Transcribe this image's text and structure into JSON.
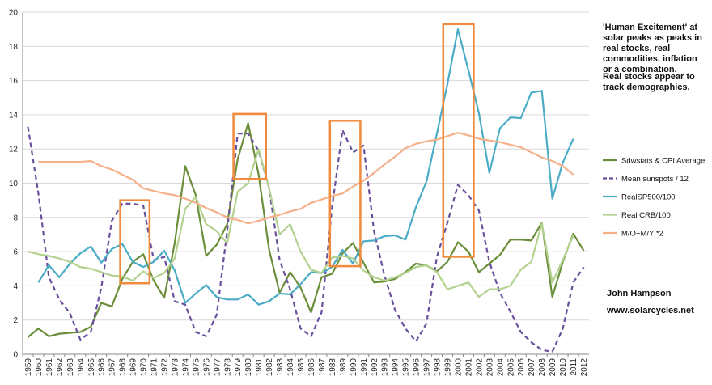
{
  "chart_data": {
    "type": "line",
    "title": "",
    "xlabel": "",
    "ylabel": "",
    "ylim": [
      0,
      20
    ],
    "yticks": [
      0,
      2,
      4,
      6,
      8,
      10,
      12,
      14,
      16,
      18,
      20
    ],
    "x": [
      "1959",
      "1960",
      "1961",
      "1962",
      "1963",
      "1964",
      "1965",
      "1966",
      "1967",
      "1968",
      "1969",
      "1970",
      "1971",
      "1972",
      "1973",
      "1974",
      "1975",
      "1976",
      "1977",
      "1978",
      "1979",
      "1980",
      "1981",
      "1982",
      "1983",
      "1984",
      "1985",
      "1986",
      "1987",
      "1988",
      "1989",
      "1990",
      "1991",
      "1992",
      "1993",
      "1994",
      "1995",
      "1996",
      "1997",
      "1998",
      "1999",
      "2000",
      "2001",
      "2002",
      "2003",
      "2004",
      "2005",
      "2006",
      "2007",
      "2008",
      "2009",
      "2010",
      "2011",
      "2012"
    ],
    "grid": true,
    "legend_position": "right",
    "series": [
      {
        "name": "Sdwstats & CPI Average",
        "color": "#6b8e3a",
        "dash": false,
        "values": [
          1.0,
          1.5,
          1.05,
          1.2,
          1.25,
          1.3,
          1.6,
          3.0,
          2.8,
          4.4,
          5.4,
          5.85,
          4.3,
          3.3,
          6.5,
          11.0,
          9.3,
          5.75,
          6.4,
          7.6,
          11.4,
          13.5,
          10.5,
          6.1,
          3.6,
          4.8,
          3.9,
          2.45,
          4.5,
          4.7,
          5.9,
          6.5,
          5.35,
          4.2,
          4.25,
          4.4,
          4.8,
          5.3,
          5.2,
          4.85,
          5.4,
          6.55,
          6.0,
          4.8,
          5.3,
          5.8,
          6.7,
          6.7,
          6.65,
          7.7,
          3.35,
          5.4,
          7.05,
          6.05
        ]
      },
      {
        "name": "Mean sunspots  / 12",
        "color": "#6a4f9c",
        "dash": true,
        "values": [
          13.3,
          9.4,
          4.5,
          3.2,
          2.4,
          0.85,
          1.3,
          3.9,
          7.8,
          8.8,
          8.8,
          8.7,
          5.5,
          5.7,
          3.1,
          2.9,
          1.3,
          1.05,
          2.3,
          7.2,
          12.9,
          12.9,
          11.9,
          9.7,
          5.5,
          3.8,
          1.5,
          1.05,
          2.45,
          8.6,
          13.1,
          11.8,
          12.2,
          7.2,
          4.6,
          2.6,
          1.5,
          0.75,
          1.8,
          5.7,
          7.7,
          9.9,
          9.3,
          8.4,
          5.4,
          3.6,
          2.5,
          1.3,
          0.7,
          0.25,
          0.15,
          1.5,
          4.2,
          5.1
        ]
      },
      {
        "name": "RealSP500/100",
        "color": "#4bacc6",
        "dash": false,
        "values": [
          null,
          4.2,
          5.2,
          4.5,
          5.3,
          5.9,
          6.3,
          5.35,
          6.15,
          6.45,
          5.4,
          5.1,
          5.4,
          6.05,
          4.9,
          3.0,
          3.55,
          4.05,
          3.35,
          3.2,
          3.2,
          3.5,
          2.9,
          3.1,
          3.55,
          3.5,
          4.1,
          4.8,
          4.75,
          5.1,
          6.1,
          5.3,
          6.6,
          6.65,
          6.9,
          6.95,
          6.7,
          8.6,
          10.1,
          12.9,
          15.8,
          19.0,
          16.6,
          14.1,
          10.6,
          13.2,
          13.85,
          13.8,
          15.3,
          15.4,
          9.1,
          11.2,
          12.6,
          null
        ]
      },
      {
        "name": "Real CRB/100",
        "color": "#b3d18f",
        "dash": false,
        "values": [
          6.0,
          5.85,
          5.75,
          5.6,
          5.4,
          5.1,
          5.0,
          4.8,
          4.6,
          4.55,
          4.3,
          4.85,
          4.45,
          4.75,
          5.6,
          8.5,
          9.2,
          7.6,
          7.2,
          6.5,
          9.5,
          10.0,
          12.0,
          9.7,
          7.0,
          7.6,
          6.0,
          4.95,
          4.75,
          5.65,
          5.75,
          5.6,
          4.9,
          4.5,
          4.3,
          4.5,
          4.75,
          5.1,
          5.2,
          4.8,
          3.8,
          4.0,
          4.2,
          3.35,
          3.8,
          3.8,
          4.0,
          4.95,
          5.4,
          7.65,
          4.2,
          5.5,
          6.95,
          null
        ]
      },
      {
        "name": "M/O+M/Y *2",
        "color": "#f5b08a",
        "dash": false,
        "values": [
          null,
          11.25,
          11.25,
          11.25,
          11.25,
          11.25,
          11.3,
          11.0,
          10.8,
          10.5,
          10.2,
          9.7,
          9.55,
          9.4,
          9.3,
          9.1,
          8.85,
          8.55,
          8.3,
          8.0,
          7.85,
          7.65,
          7.8,
          8.0,
          8.15,
          8.35,
          8.5,
          8.85,
          9.05,
          9.25,
          9.4,
          9.8,
          10.15,
          10.6,
          11.1,
          11.55,
          12.05,
          12.3,
          12.45,
          12.55,
          12.75,
          12.95,
          12.8,
          12.6,
          12.5,
          12.4,
          12.25,
          12.1,
          11.8,
          11.5,
          11.3,
          11.0,
          10.5,
          null
        ]
      }
    ],
    "highlight_boxes": [
      {
        "x_start": "1967.8",
        "x_end": "1970.6",
        "y_low": 4.15,
        "y_high": 9.0
      },
      {
        "x_start": "1978.6",
        "x_end": "1981.7",
        "y_low": 10.25,
        "y_high": 14.05
      },
      {
        "x_start": "1987.8",
        "x_end": "1990.7",
        "y_low": 5.15,
        "y_high": 13.65
      },
      {
        "x_start": "1998.6",
        "x_end": "2001.5",
        "y_low": 5.7,
        "y_high": 19.3
      }
    ],
    "highlight_color": "#f08a3c",
    "annotations": {
      "note_lines": [
        "'Human Excitement' at",
        "solar peaks as peaks in",
        "real stocks, real",
        "commodities, inflation",
        "or a combination.",
        "",
        "Real stocks appear to",
        "track demographics."
      ],
      "author": "John Hampson",
      "website": "www.solarcycles.net"
    }
  }
}
